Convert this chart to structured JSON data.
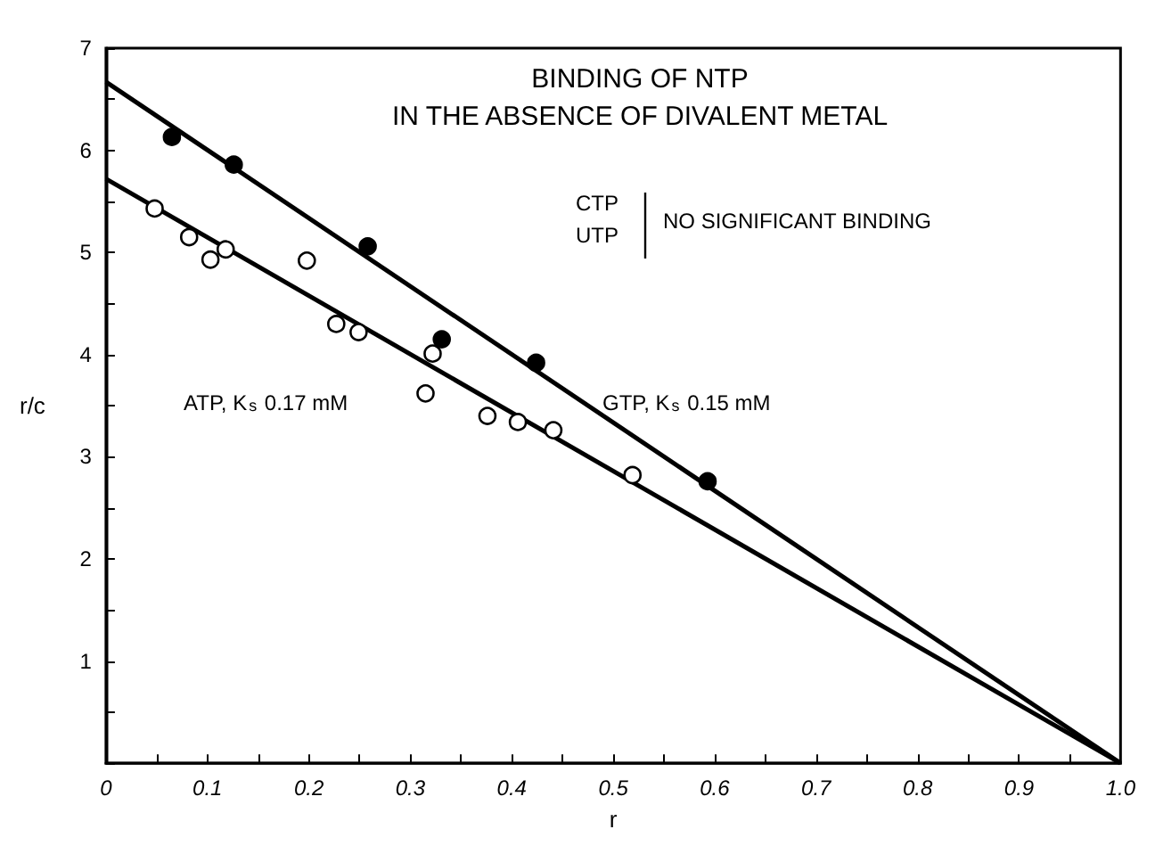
{
  "chart_data": {
    "type": "scatter",
    "title": "BINDING OF NTP",
    "subtitle": "IN THE ABSENCE OF DIVALENT METAL",
    "xlabel": "r",
    "ylabel": "r/c",
    "annotations": [
      "CTP",
      "UTP",
      "NO SIGNIFICANT BINDING",
      "ATP, K$_{s}$ 0.17 mM",
      "GTP, K$_{s}$ 0.15 mM"
    ],
    "series": [
      {
        "color": "#000000",
        "marker": "circle",
        "x": [
          0.065,
          0.126,
          0.258,
          0.331,
          0.424,
          0.593
        ],
        "values": [
          6.13,
          5.86,
          5.06,
          4.15,
          3.92,
          2.76
        ]
      },
      {
        "color": "#ffffff",
        "marker": "circle",
        "x": [
          0.048,
          0.082,
          0.103,
          0.118,
          0.198,
          0.227,
          0.249,
          0.315,
          0.322,
          0.376,
          0.406,
          0.441,
          0.519
        ],
        "values": [
          5.43,
          5.15,
          4.93,
          5.03,
          4.92,
          4.3,
          4.22,
          3.62,
          4.01,
          3.4,
          3.34,
          3.26,
          2.82
        ]
      },
      {
        "type": "line",
        "color": "#000000",
        "marker": "none",
        "x": [
          0,
          1
        ],
        "values": [
          6.67,
          0
        ]
      },
      {
        "type": "line",
        "color": "#000000",
        "marker": "none",
        "x": [
          0,
          1
        ],
        "values": [
          5.72,
          0
        ]
      }
    ],
    "xlim": [
      0,
      1
    ],
    "ylim": [
      0,
      7
    ],
    "xticks": [
      0,
      {
        "value": 0.05,
        "label": null
      },
      0.1,
      {
        "value": 0.15,
        "label": null
      },
      0.2,
      {
        "value": 0.25,
        "label": null
      },
      0.3,
      {
        "value": 0.35,
        "label": null
      },
      0.4,
      {
        "value": 0.45,
        "label": null
      },
      0.5,
      {
        "value": 0.55,
        "label": null
      },
      0.6,
      {
        "value": 0.65,
        "label": null
      },
      0.7,
      {
        "value": 0.75,
        "label": null
      },
      0.8,
      {
        "value": 0.85,
        "label": null
      },
      0.9,
      {
        "value": 0.95,
        "label": null
      },
      {
        "value": 1,
        "label": "1.0"
      }
    ],
    "yticks": [
      {
        "value": 0,
        "label": null
      },
      {
        "value": 0.5,
        "label": null
      },
      1,
      {
        "value": 1.5,
        "label": null
      },
      2,
      {
        "value": 2.5,
        "label": null
      },
      3,
      {
        "value": 3.5,
        "label": null
      },
      4,
      {
        "value": 4.5,
        "label": null
      },
      5,
      {
        "value": 5.5,
        "label": null
      },
      6,
      {
        "value": 6.5,
        "label": null
      },
      7
    ],
    "grid": false,
    "line_style": "solid"
  }
}
